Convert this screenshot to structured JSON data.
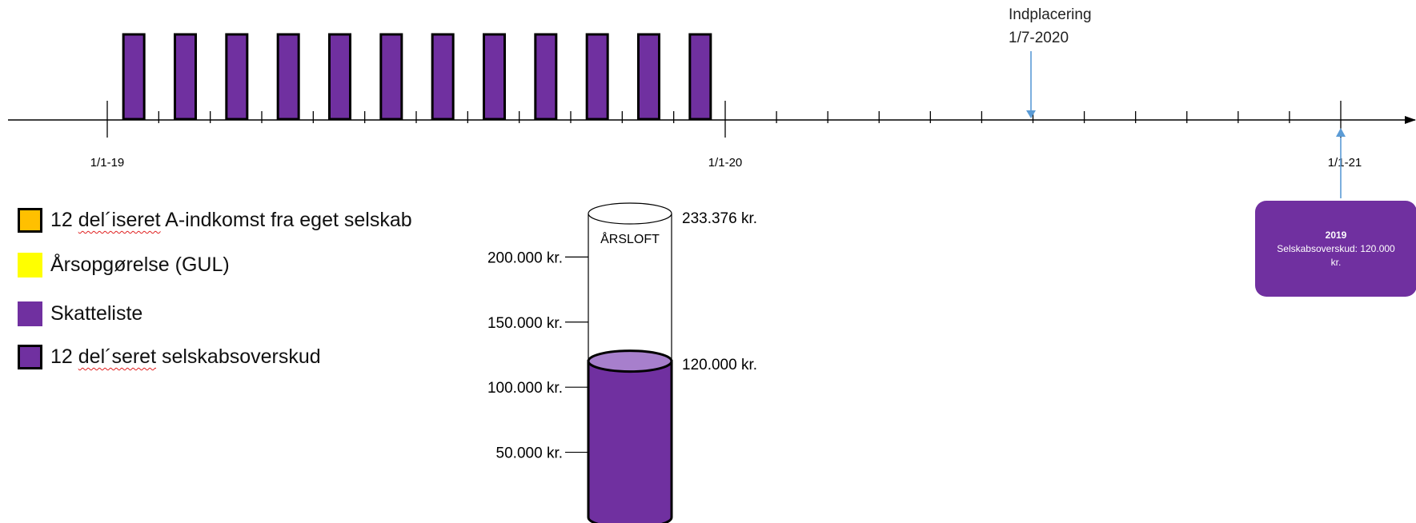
{
  "timeline": {
    "date_labels": [
      "1/1-19",
      "1/1-20",
      "1/1-21"
    ],
    "monthly_bars_count": 12,
    "arrow_color": "#5b9bd5"
  },
  "indplacering": {
    "line1": "Indplacering",
    "line2": "1/7-2020"
  },
  "legend": {
    "items": [
      {
        "prefix": "12 ",
        "underlined": "del´iseret",
        "suffix": " A-indkomst fra eget selskab",
        "color": "#ffc000",
        "border": true
      },
      {
        "prefix": "Årsopgørelse (GUL)",
        "underlined": "",
        "suffix": "",
        "color": "#ffff00",
        "border": false
      },
      {
        "prefix": "Skatteliste",
        "underlined": "",
        "suffix": "",
        "color": "#7030a0",
        "border": false
      },
      {
        "prefix": "12 ",
        "underlined": "del´seret",
        "suffix": " selskabsoverskud",
        "color": "#7030a0",
        "border": true
      }
    ]
  },
  "cylinder": {
    "top_label": "ÅRSLOFT",
    "max_label": "233.376 kr.",
    "fill_label": "120.000 kr.",
    "max_value": 233376,
    "fill_value": 120000,
    "scale": [
      {
        "label": "200.000 kr.",
        "value": 200000
      },
      {
        "label": "150.000 kr.",
        "value": 150000
      },
      {
        "label": "100.000 kr.",
        "value": 100000
      },
      {
        "label": "50.000 kr.",
        "value": 50000
      }
    ],
    "fill_color": "#7030a0",
    "fill_top_color": "#a77fcc"
  },
  "box_2019": {
    "year": "2019",
    "line1": "Selskabsoverskud: 120.000",
    "line2": "kr.",
    "color": "#7030a0"
  }
}
